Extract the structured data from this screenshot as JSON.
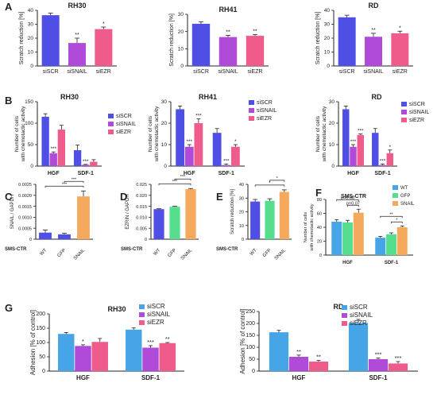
{
  "colors": {
    "blue": "#4f4fe6",
    "purple": "#b04ad8",
    "pink": "#ef5b8a",
    "light_blue": "#45a5e6",
    "orange": "#f5a95c",
    "green": "#56dd8e"
  },
  "panel_letters": [
    "A",
    "B",
    "C",
    "D",
    "E",
    "F",
    "G"
  ],
  "chart_data": [
    {
      "id": "A1",
      "panel": "A",
      "type": "bar",
      "title": "RH30",
      "ylabel": "Scratch reduction [%]",
      "ylim": [
        0,
        40
      ],
      "yticks": [
        0,
        10,
        20,
        30,
        40
      ],
      "categories": [
        "siSCR",
        "siSNAIL",
        "siEZR"
      ],
      "values": [
        36.5,
        16.5,
        26.5
      ],
      "errors": [
        1.5,
        3.5,
        1.5
      ],
      "colors": [
        "blue",
        "purple",
        "pink"
      ],
      "sig": [
        "",
        "**",
        "*"
      ]
    },
    {
      "id": "A2",
      "panel": "A",
      "type": "bar",
      "title": "RH41",
      "ylabel": "Scratch reduction [%]",
      "ylim": [
        0,
        30
      ],
      "yticks": [
        0,
        10,
        20,
        30
      ],
      "categories": [
        "siSCR",
        "siSNAIL",
        "siEZR"
      ],
      "values": [
        24.5,
        16.8,
        17.5
      ],
      "errors": [
        1.2,
        1.0,
        0.8
      ],
      "colors": [
        "blue",
        "purple",
        "pink"
      ],
      "sig": [
        "",
        "**",
        "**"
      ]
    },
    {
      "id": "A3",
      "panel": "A",
      "type": "bar",
      "title": "RD",
      "ylabel": "Scratch reduction [%]",
      "ylim": [
        0,
        40
      ],
      "yticks": [
        0,
        10,
        20,
        30,
        40
      ],
      "categories": [
        "siSCR",
        "siSNAIL",
        "siEZR"
      ],
      "values": [
        35,
        21,
        23.5
      ],
      "errors": [
        1.5,
        2.5,
        1.5
      ],
      "colors": [
        "blue",
        "purple",
        "pink"
      ],
      "sig": [
        "",
        "**",
        "*"
      ]
    },
    {
      "id": "B1",
      "panel": "B",
      "type": "bar",
      "title": "RH30",
      "ylabel": "Number of cells with chemotactic activity",
      "ylim": [
        0,
        150
      ],
      "yticks": [
        0,
        50,
        100,
        150
      ],
      "categories": [
        "HGF",
        "SDF-1"
      ],
      "series": [
        {
          "name": "siSCR",
          "color": "blue",
          "values": [
            115,
            37
          ],
          "errors": [
            7,
            12
          ],
          "sig": [
            "",
            ""
          ]
        },
        {
          "name": "siSNAIL",
          "color": "purple",
          "values": [
            30,
            3
          ],
          "errors": [
            3,
            1
          ],
          "sig": [
            "***",
            "***"
          ]
        },
        {
          "name": "siEZR",
          "color": "pink",
          "values": [
            85,
            10
          ],
          "errors": [
            10,
            5
          ],
          "sig": [
            "",
            ""
          ]
        }
      ],
      "legend": "right"
    },
    {
      "id": "B2",
      "panel": "B",
      "type": "bar",
      "title": "RH41",
      "ylabel": "Number of cells with chemotactic activity",
      "ylim": [
        0,
        30
      ],
      "yticks": [
        0,
        10,
        20,
        30
      ],
      "categories": [
        "HGF",
        "SDF-1"
      ],
      "series": [
        {
          "name": "siSCR",
          "color": "blue",
          "values": [
            26.5,
            15.5
          ],
          "errors": [
            1.5,
            2
          ],
          "sig": [
            "",
            ""
          ]
        },
        {
          "name": "siSNAIL",
          "color": "purple",
          "values": [
            9,
            0.5
          ],
          "errors": [
            1,
            0.5
          ],
          "sig": [
            "***",
            "***"
          ]
        },
        {
          "name": "siEZR",
          "color": "pink",
          "values": [
            20,
            9
          ],
          "errors": [
            2,
            1
          ],
          "sig": [
            "***",
            "*"
          ]
        }
      ],
      "legend": "right"
    },
    {
      "id": "B3",
      "panel": "B",
      "type": "bar",
      "title": "RD",
      "ylabel": "Number of cells with chemotactic activity",
      "ylim": [
        0,
        30
      ],
      "yticks": [
        0,
        10,
        20,
        30
      ],
      "categories": [
        "HGF",
        "SDF-1"
      ],
      "series": [
        {
          "name": "siSCR",
          "color": "blue",
          "values": [
            26.5,
            15.5
          ],
          "errors": [
            1.5,
            2
          ],
          "sig": [
            "",
            ""
          ]
        },
        {
          "name": "siSNAIL",
          "color": "purple",
          "values": [
            9,
            0.5
          ],
          "errors": [
            1,
            0.5
          ],
          "sig": [
            "***",
            "***"
          ]
        },
        {
          "name": "siEZR",
          "color": "pink",
          "values": [
            14.5,
            6
          ],
          "errors": [
            0.5,
            1.5
          ],
          "sig": [
            "***",
            "*"
          ]
        }
      ],
      "legend": "right"
    },
    {
      "id": "C",
      "panel": "C",
      "type": "bar",
      "ylabel": "SNAIL / GAPDH",
      "ylim": [
        0,
        0.0025
      ],
      "yticks": [
        0,
        0.0005,
        0.001,
        0.0015,
        0.002,
        0.0025
      ],
      "ytick_labels": [
        "0",
        "0.0005",
        "0.0010",
        "0.0015",
        "0.0020",
        "0.0025"
      ],
      "prefix": "SMS-CTR",
      "categories": [
        "WT",
        "GFP",
        "SNAIL"
      ],
      "values": [
        0.0003,
        0.00022,
        0.00195
      ],
      "errors": [
        0.00012,
        5e-05,
        0.00025
      ],
      "colors": [
        "blue",
        "blue",
        "orange"
      ],
      "brackets": [
        {
          "from": 0,
          "to": 2,
          "label": "***"
        },
        {
          "from": 1,
          "to": 2,
          "label": "***"
        }
      ]
    },
    {
      "id": "D",
      "panel": "D",
      "type": "bar",
      "ylabel": "EZRIN / GAPDH",
      "ylim": [
        0,
        0.025
      ],
      "yticks": [
        0,
        0.005,
        0.01,
        0.015,
        0.02,
        0.025
      ],
      "ytick_labels": [
        "0",
        "0.005",
        "0.010",
        "0.015",
        "0.020",
        "0.025"
      ],
      "prefix": "SMS-CTR",
      "categories": [
        "WT",
        "GFP",
        "SNAIL"
      ],
      "values": [
        0.0137,
        0.0148,
        0.0228
      ],
      "errors": [
        0.0002,
        0.0002,
        0.0003
      ],
      "colors": [
        "blue",
        "green",
        "orange"
      ],
      "brackets": [
        {
          "from": 0,
          "to": 2,
          "label": "***"
        },
        {
          "from": 1,
          "to": 2,
          "label": "***"
        }
      ]
    },
    {
      "id": "E",
      "panel": "E",
      "type": "bar",
      "ylabel": "Scratch reduction [%]",
      "ylim": [
        0,
        40
      ],
      "yticks": [
        0,
        10,
        20,
        30,
        40
      ],
      "prefix": "SMS-CTR",
      "categories": [
        "WT",
        "GFP",
        "SNAIL"
      ],
      "values": [
        27.5,
        28,
        34.5
      ],
      "errors": [
        1.5,
        1.5,
        1.5
      ],
      "colors": [
        "blue",
        "green",
        "orange"
      ],
      "brackets": [
        {
          "from": 0,
          "to": 2,
          "label": "*"
        },
        {
          "from": 1,
          "to": 2,
          "label": "*"
        }
      ]
    },
    {
      "id": "F",
      "panel": "F",
      "type": "bar",
      "title": "SMS-CTR",
      "ylabel": "Number of cells with chemotactic activity",
      "ylim": [
        0,
        80
      ],
      "yticks": [
        0,
        20,
        40,
        60,
        80
      ],
      "categories": [
        "HGF",
        "SDF-1"
      ],
      "series": [
        {
          "name": "WT",
          "color": "light_blue",
          "values": [
            48,
            25
          ],
          "errors": [
            3,
            2
          ]
        },
        {
          "name": "GFP",
          "color": "green",
          "values": [
            47,
            30
          ],
          "errors": [
            3,
            2
          ]
        },
        {
          "name": "SNAIL",
          "color": "orange",
          "values": [
            61,
            40
          ],
          "errors": [
            5,
            2
          ]
        }
      ],
      "brackets": [
        {
          "group": 0,
          "from": 0,
          "to": 2,
          "label": "p=0.08"
        },
        {
          "group": 0,
          "from": 1,
          "to": 2,
          "label": "p=0.07"
        },
        {
          "group": 1,
          "from": 0,
          "to": 2,
          "label": "**"
        },
        {
          "group": 1,
          "from": 1,
          "to": 2,
          "label": "*"
        }
      ],
      "legend": "top-right"
    },
    {
      "id": "G1",
      "panel": "G",
      "type": "bar",
      "title": "RH30",
      "ylabel": "Adhesion [% of control]",
      "ylim": [
        0,
        200
      ],
      "yticks": [
        0,
        50,
        100,
        150,
        200
      ],
      "categories": [
        "HGF",
        "SDF-1"
      ],
      "series": [
        {
          "name": "siSCR",
          "color": "light_blue",
          "values": [
            130,
            145
          ],
          "errors": [
            5,
            6
          ],
          "sig": [
            "",
            ""
          ]
        },
        {
          "name": "siSNAIL",
          "color": "purple",
          "values": [
            88,
            82
          ],
          "errors": [
            4,
            7
          ],
          "sig": [
            "*",
            "***"
          ]
        },
        {
          "name": "siEZR",
          "color": "pink",
          "values": [
            102,
            98
          ],
          "errors": [
            12,
            2
          ],
          "sig": [
            "",
            "**"
          ]
        }
      ],
      "legend": "top-right"
    },
    {
      "id": "G2",
      "panel": "G",
      "type": "bar",
      "title": "RD",
      "ylabel": "Adhesion [% of control]",
      "ylim": [
        0,
        250
      ],
      "yticks": [
        0,
        50,
        100,
        150,
        200,
        250
      ],
      "categories": [
        "HGF",
        "SDF-1"
      ],
      "series": [
        {
          "name": "siSCR",
          "color": "light_blue",
          "values": [
            163,
            202
          ],
          "errors": [
            8,
            15
          ],
          "sig": [
            "",
            ""
          ]
        },
        {
          "name": "siSNAIL",
          "color": "purple",
          "values": [
            60,
            50
          ],
          "errors": [
            7,
            5
          ],
          "sig": [
            "**",
            "***"
          ]
        },
        {
          "name": "siEZR",
          "color": "pink",
          "values": [
            40,
            32
          ],
          "errors": [
            5,
            8
          ],
          "sig": [
            "**",
            "***"
          ]
        }
      ],
      "legend": "top-right"
    }
  ]
}
